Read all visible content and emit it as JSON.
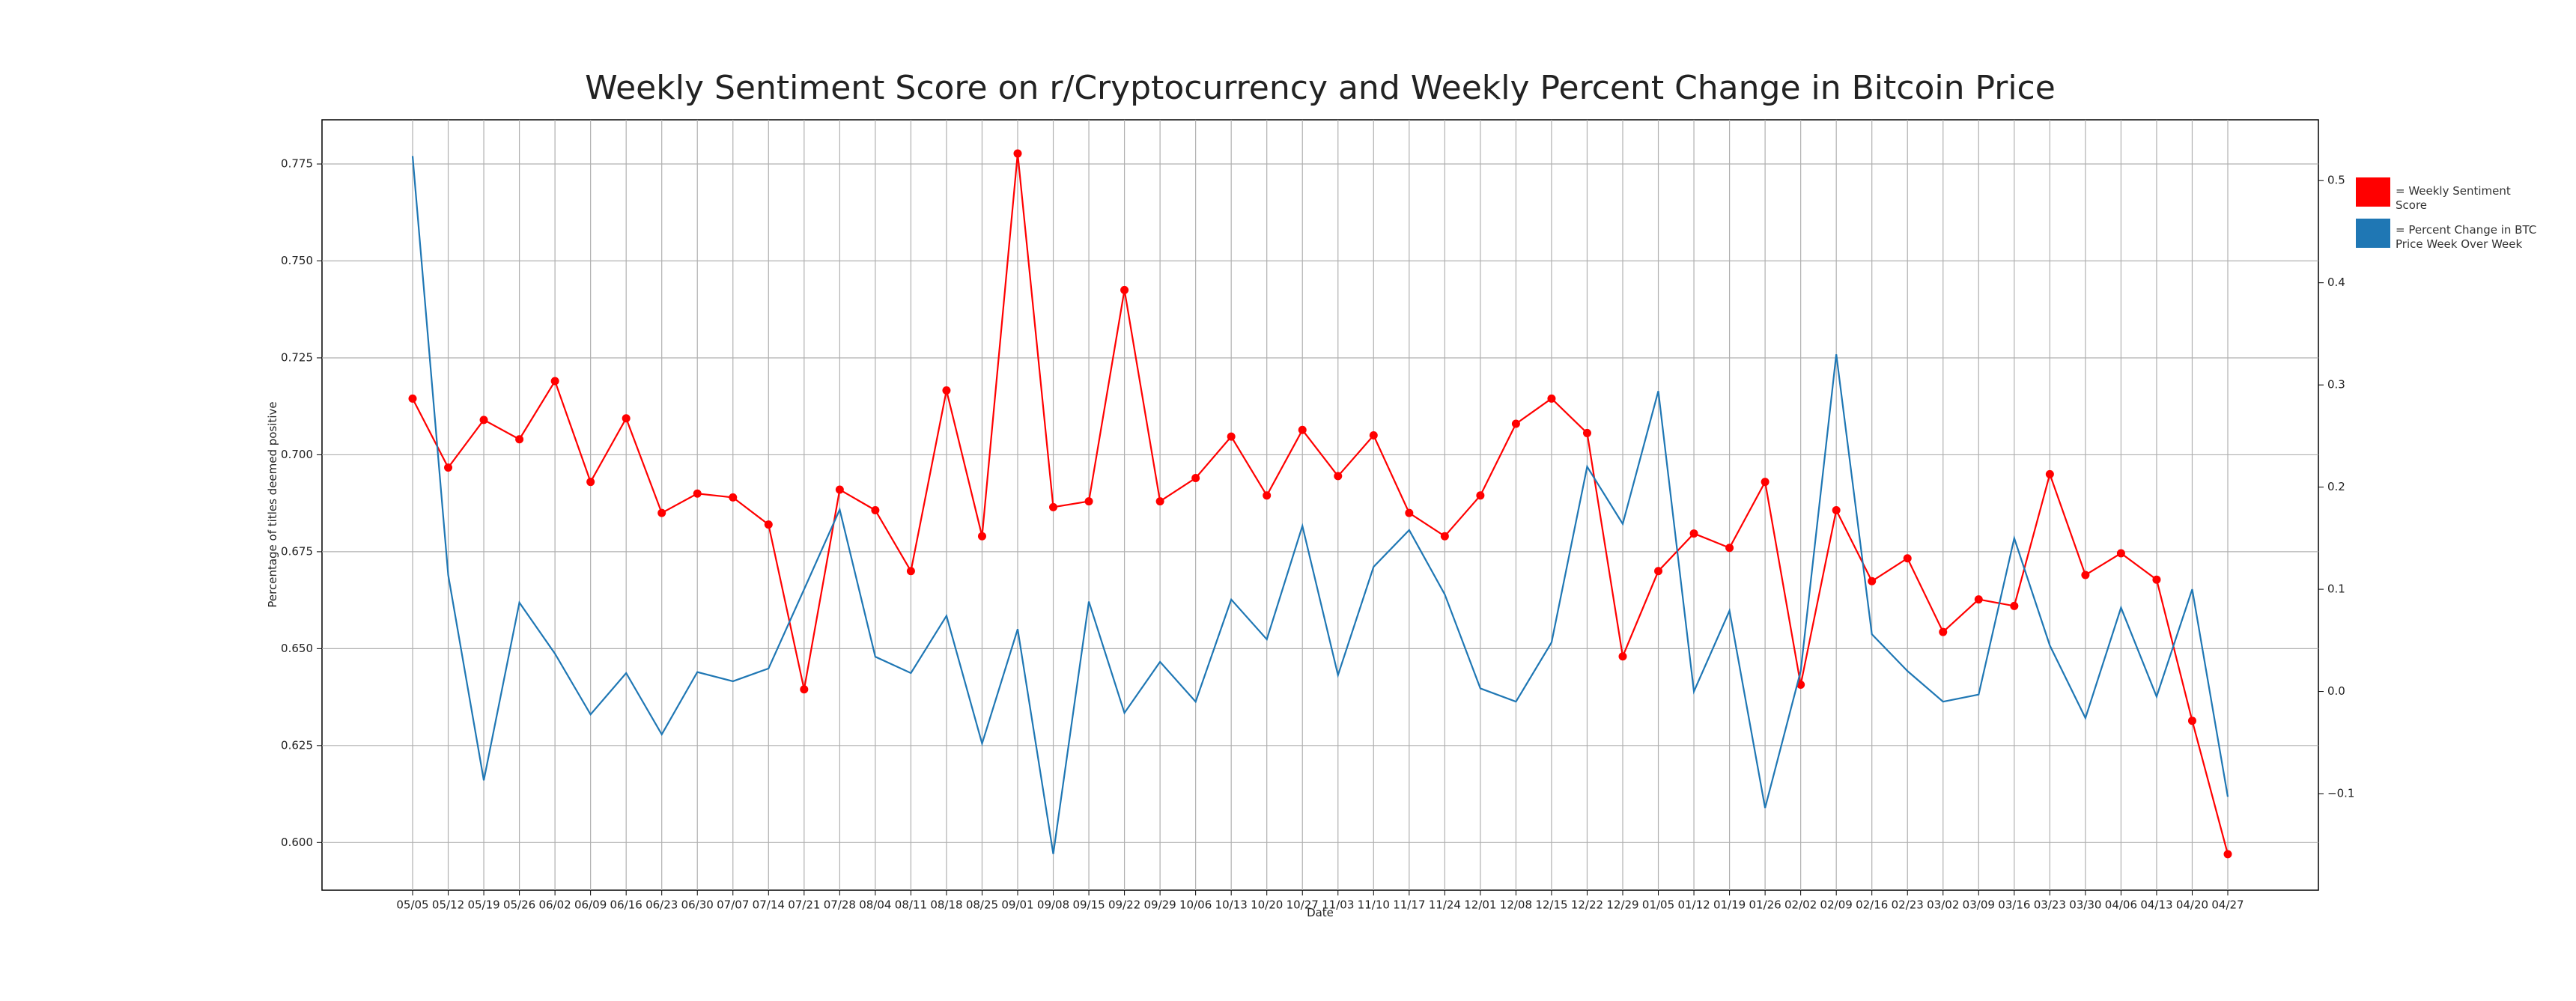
{
  "chart_data": {
    "type": "line",
    "title": "Weekly Sentiment Score on r/Cryptocurrency and Weekly Percent Change in Bitcoin Price",
    "xlabel": "Date",
    "ylabel": "Percentage of titles deemed positive",
    "categories": [
      "05/05",
      "05/12",
      "05/19",
      "05/26",
      "06/02",
      "06/09",
      "06/16",
      "06/23",
      "06/30",
      "07/07",
      "07/14",
      "07/21",
      "07/28",
      "08/04",
      "08/11",
      "08/18",
      "08/25",
      "09/01",
      "09/08",
      "09/15",
      "09/22",
      "09/29",
      "10/06",
      "10/13",
      "10/20",
      "10/27",
      "11/03",
      "11/10",
      "11/17",
      "11/24",
      "12/01",
      "12/08",
      "12/15",
      "12/22",
      "12/29",
      "01/05",
      "01/12",
      "01/19",
      "01/26",
      "02/02",
      "02/09",
      "02/16",
      "02/23",
      "03/02",
      "03/09",
      "03/16",
      "03/23",
      "03/30",
      "04/06",
      "04/13",
      "04/20",
      "04/27"
    ],
    "series": [
      {
        "name": "= Weekly Sentiment Score",
        "color": "#ff0000",
        "markers": true,
        "values": [
          0.7145,
          0.6967,
          0.709,
          0.704,
          0.719,
          0.693,
          0.7094,
          0.685,
          0.69,
          0.689,
          0.682,
          0.6395,
          0.691,
          0.6857,
          0.67,
          0.7166,
          0.679,
          0.7777,
          0.6865,
          0.688,
          0.7425,
          0.688,
          0.694,
          0.7047,
          0.6895,
          0.7064,
          0.6945,
          0.705,
          0.685,
          0.679,
          0.6895,
          0.708,
          0.7145,
          0.7056,
          0.648,
          0.67,
          0.6797,
          0.676,
          0.693,
          0.6407,
          0.6857,
          0.6674,
          0.6733,
          0.6543,
          0.6627,
          0.661,
          0.695,
          0.669,
          0.6746,
          0.6678,
          0.6314,
          0.597
        ]
      },
      {
        "name": "= Percent Change in BTC Price Week Over Week",
        "color": "#1f77b4",
        "axis": "y2",
        "markers": false,
        "values": [
          0.524,
          0.114,
          -0.087,
          0.087,
          0.037,
          -0.0225,
          0.018,
          -0.042,
          0.019,
          0.01,
          0.0225,
          0.1,
          0.178,
          0.034,
          0.018,
          0.074,
          -0.051,
          0.061,
          -0.159,
          0.088,
          -0.021,
          0.029,
          -0.01,
          0.09,
          0.051,
          0.162,
          0.016,
          0.122,
          0.158,
          0.095,
          0.003,
          -0.01,
          0.048,
          0.22,
          0.164,
          0.294,
          0.0,
          0.079,
          -0.114,
          0.02,
          0.33,
          0.056,
          0.02,
          -0.01,
          -0.003,
          0.15,
          0.045,
          -0.026,
          0.082,
          -0.005,
          0.1,
          -0.103
        ]
      }
    ],
    "ylim": [
      0.5877,
      0.7864
    ],
    "yticks": [
      {
        "value": 0.6,
        "label": "0.600"
      },
      {
        "value": 0.625,
        "label": "0.625"
      },
      {
        "value": 0.65,
        "label": "0.650"
      },
      {
        "value": 0.675,
        "label": "0.675"
      },
      {
        "value": 0.7,
        "label": "0.700"
      },
      {
        "value": 0.725,
        "label": "0.725"
      },
      {
        "value": 0.75,
        "label": "0.750"
      },
      {
        "value": 0.775,
        "label": "0.775"
      }
    ],
    "y2lim": [
      -0.1945,
      0.5595
    ],
    "y2ticks": [
      {
        "value": -0.1,
        "label": "−0.1"
      },
      {
        "value": 0,
        "label": "0.0"
      },
      0.1,
      0.2,
      0.3,
      0.4,
      0.5
    ],
    "grid": true
  }
}
